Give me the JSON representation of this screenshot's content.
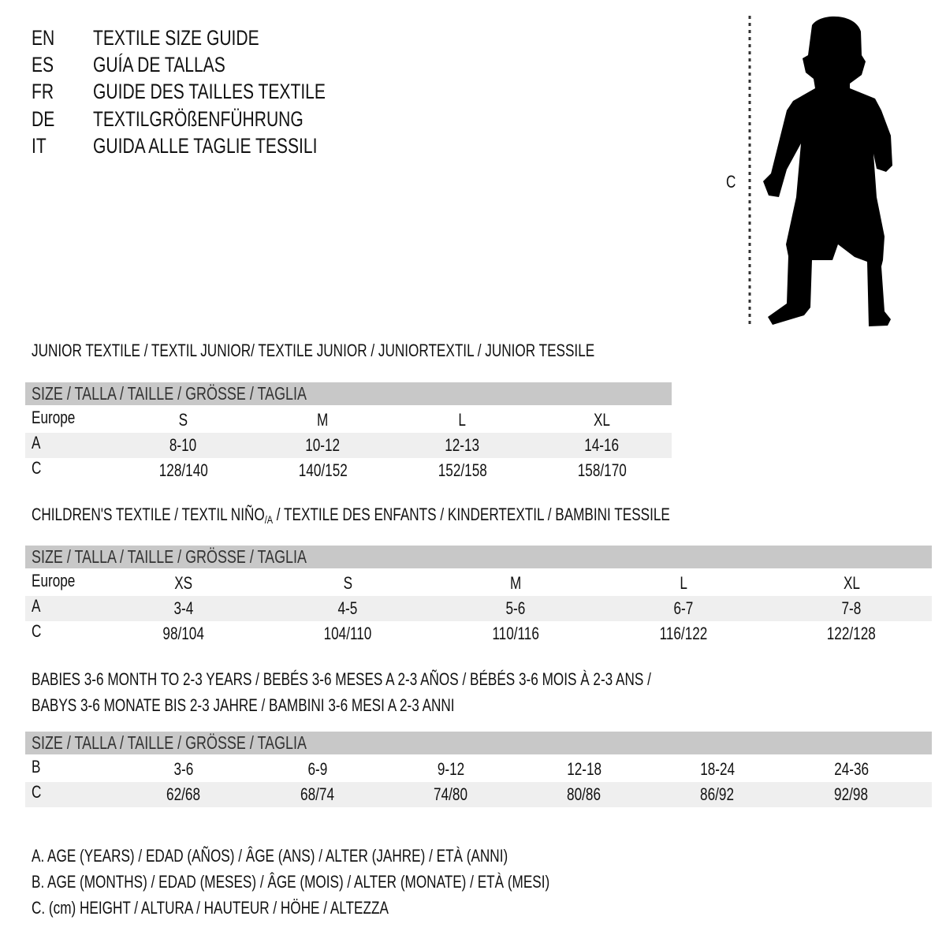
{
  "languages": [
    {
      "code": "EN",
      "title": "TEXTILE SIZE GUIDE"
    },
    {
      "code": "ES",
      "title": "GUÍA DE TALLAS"
    },
    {
      "code": "FR",
      "title": "GUIDE DES TAILLES TEXTILE"
    },
    {
      "code": "DE",
      "title": "TEXTILGRÖßENFÜHRUNG"
    },
    {
      "code": "IT",
      "title": "GUIDA ALLE TAGLIE TESSILI"
    }
  ],
  "figure": {
    "measure_label": "C",
    "icon": "child-silhouette"
  },
  "size_header": "SIZE / TALLA / TAILLE / GRÖSSE / TAGLIA",
  "junior": {
    "title": "JUNIOR TEXTILE / TEXTIL JUNIOR/ TEXTILE JUNIOR / JUNIORTEXTIL / JUNIOR TESSILE",
    "rows": [
      {
        "label": "Europe",
        "values": [
          "S",
          "M",
          "L",
          "XL"
        ]
      },
      {
        "label": "A",
        "values": [
          "8-10",
          "10-12",
          "12-13",
          "14-16"
        ]
      },
      {
        "label": "C",
        "values": [
          "128/140",
          "140/152",
          "152/158",
          "158/170"
        ]
      }
    ]
  },
  "children": {
    "title_pre": "CHILDREN'S TEXTILE / TEXTIL NIÑO",
    "title_sub": "/A",
    "title_post": " / TEXTILE DES ENFANTS / KINDERTEXTIL / BAMBINI TESSILE",
    "rows": [
      {
        "label": "Europe",
        "values": [
          "XS",
          "S",
          "M",
          "L",
          "XL"
        ]
      },
      {
        "label": "A",
        "values": [
          "3-4",
          "4-5",
          "5-6",
          "6-7",
          "7-8"
        ]
      },
      {
        "label": "C",
        "values": [
          "98/104",
          "104/110",
          "110/116",
          "116/122",
          "122/128"
        ]
      }
    ]
  },
  "babies": {
    "title_line1": "BABIES 3-6 MONTH TO 2-3 YEARS / BEBÉS 3-6 MESES A 2-3 AÑOS / BÉBÉS 3-6 MOIS À 2-3 ANS /",
    "title_line2": "BABYS 3-6 MONATE BIS 2-3 JAHRE / BAMBINI 3-6 MESI A 2-3 ANNI",
    "rows": [
      {
        "label": "B",
        "values": [
          "3-6",
          "6-9",
          "9-12",
          "12-18",
          "18-24",
          "24-36"
        ]
      },
      {
        "label": "C",
        "values": [
          "62/68",
          "68/74",
          "74/80",
          "80/86",
          "86/92",
          "92/98"
        ]
      }
    ]
  },
  "legend": [
    "A. AGE (YEARS) / EDAD (AÑOS) / ÂGE (ANS) / ALTER (JAHRE) / ETÀ (ANNI)",
    "B. AGE (MONTHS) / EDAD (MESES) / ÂGE (MOIS) / ALTER (MONATE) / ETÀ (MESI)",
    "C. (cm) HEIGHT / ALTURA / HAUTEUR / HÖHE / ALTEZZA"
  ],
  "colors": {
    "header_bg": "#c8c8c8",
    "band_bg": "#efefef"
  }
}
